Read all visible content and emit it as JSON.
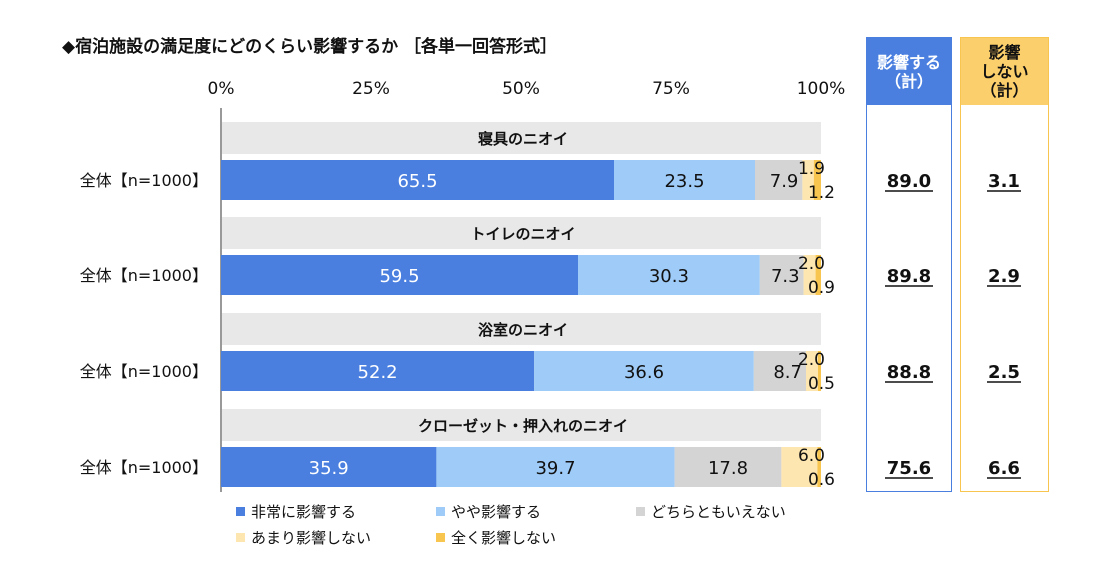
{
  "title": "◆宿泊施設の満足度にどのくらい影響するか ［各単一回答形式］",
  "colors": {
    "very": "#4a7fe0",
    "somewhat": "#9ecbf7",
    "neither": "#d4d4d4",
    "little": "#fde6b0",
    "none": "#f8c54e",
    "band": "#e8e8e8",
    "affect_box_border": "#4a7fe0",
    "affect_head_bg": "#4a7fe0",
    "noaffect_box_border": "#f8c54e",
    "noaffect_head_bg": "#fbcf6b"
  },
  "summary": {
    "affect_header": [
      "影響する",
      "（計）"
    ],
    "no_affect_header": [
      "影響",
      "しない",
      "（計）"
    ]
  },
  "chart_data": {
    "type": "bar",
    "orientation": "horizontal",
    "stacked": true,
    "xlim": [
      0,
      100
    ],
    "x_ticks": [
      "0%",
      "25%",
      "50%",
      "75%",
      "100%"
    ],
    "series_names": [
      "非常に影響する",
      "やや影響する",
      "どちらともいえない",
      "あまり影響しない",
      "全く影響しない"
    ],
    "series_colors": [
      "#4a7fe0",
      "#9ecbf7",
      "#d4d4d4",
      "#fde6b0",
      "#f8c54e"
    ],
    "groups": [
      {
        "label": "寝具のニオイ",
        "row_label": "全体【n=1000】",
        "values": [
          65.5,
          23.5,
          7.9,
          1.9,
          1.2
        ],
        "affect_total": "89.0",
        "no_affect_total": "3.1"
      },
      {
        "label": "トイレのニオイ",
        "row_label": "全体【n=1000】",
        "values": [
          59.5,
          30.3,
          7.3,
          2.0,
          0.9
        ],
        "affect_total": "89.8",
        "no_affect_total": "2.9"
      },
      {
        "label": "浴室のニオイ",
        "row_label": "全体【n=1000】",
        "values": [
          52.2,
          36.6,
          8.7,
          2.0,
          0.5
        ],
        "affect_total": "88.8",
        "no_affect_total": "2.5"
      },
      {
        "label": "クローゼット・押入れのニオイ",
        "row_label": "全体【n=1000】",
        "values": [
          35.9,
          39.7,
          17.8,
          6.0,
          0.6
        ],
        "affect_total": "75.6",
        "no_affect_total": "6.6"
      }
    ],
    "legend_position": "bottom"
  }
}
